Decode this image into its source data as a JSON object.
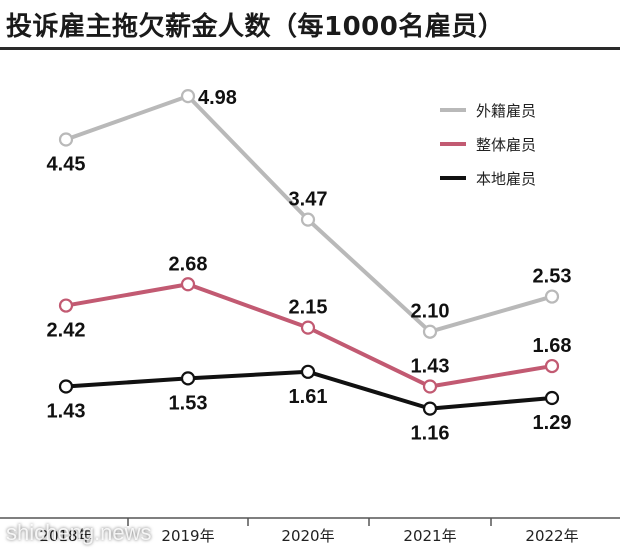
{
  "title": "投诉雇主拖欠薪金人数（每1000名雇员）",
  "watermark": "shicheng.news",
  "chart_data": {
    "type": "line",
    "categories": [
      "2018年",
      "2019年",
      "2020年",
      "2021年",
      "2022年"
    ],
    "series": [
      {
        "name": "外籍雇员",
        "color": "#b9b9b9",
        "values": [
          4.45,
          4.98,
          3.47,
          2.1,
          2.53
        ],
        "labels": [
          "4.45",
          "4.98",
          "3.47",
          "2.10",
          "2.53"
        ]
      },
      {
        "name": "整体雇员",
        "color": "#c25a72",
        "values": [
          2.42,
          2.68,
          2.15,
          1.43,
          1.68
        ],
        "labels": [
          "2.42",
          "2.68",
          "2.15",
          "1.43",
          "1.68"
        ]
      },
      {
        "name": "本地雇员",
        "color": "#111111",
        "values": [
          1.43,
          1.53,
          1.61,
          1.16,
          1.29
        ],
        "labels": [
          "1.43",
          "1.53",
          "1.61",
          "1.16",
          "1.29"
        ]
      }
    ],
    "legend_position": "top-right",
    "grid": false
  }
}
